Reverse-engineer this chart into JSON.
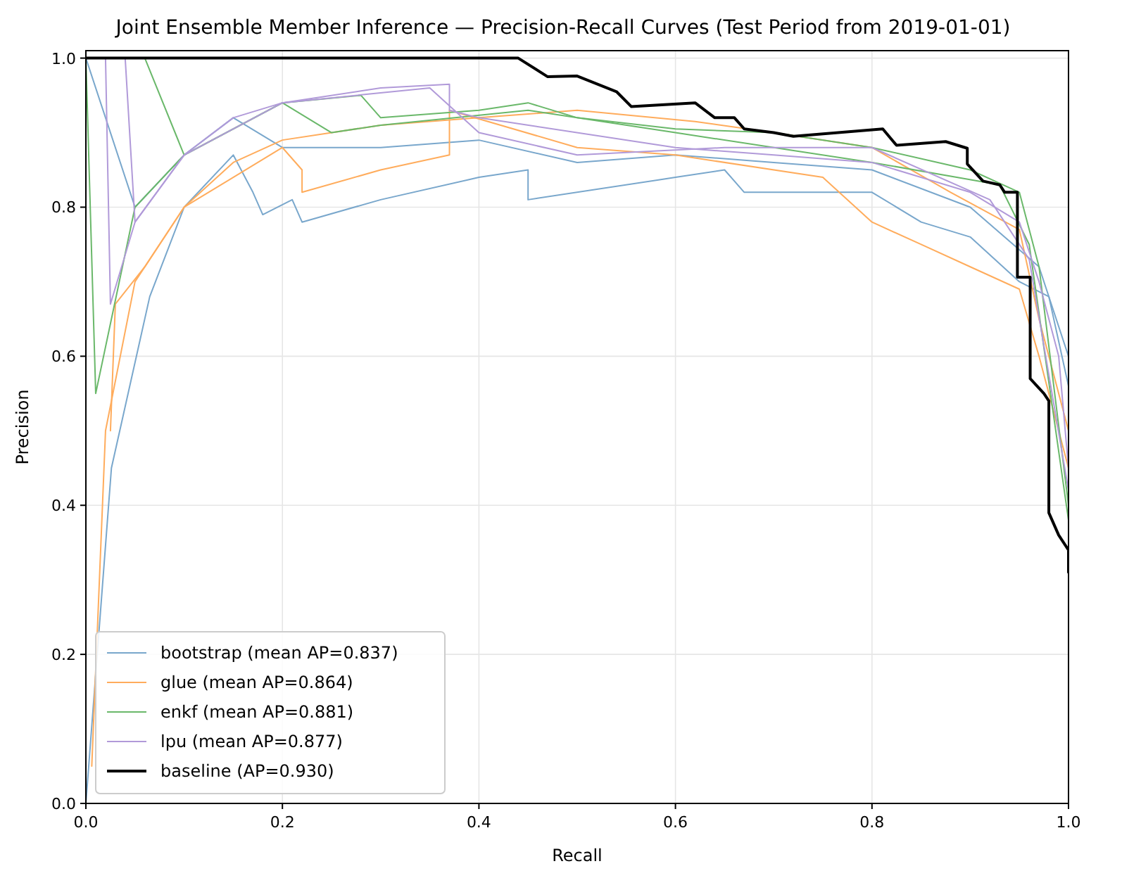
{
  "chart_data": {
    "type": "line",
    "title": "Joint Ensemble Member Inference — Precision-Recall Curves (Test Period from 2019-01-01)",
    "xlabel": "Recall",
    "ylabel": "Precision",
    "xlim": [
      0,
      1
    ],
    "ylim": [
      0,
      1.01
    ],
    "xticks": [
      {
        "value": 0,
        "label": "0.0"
      },
      {
        "value": 0.2,
        "label": "0.2"
      },
      {
        "value": 0.4,
        "label": "0.4"
      },
      {
        "value": 0.6,
        "label": "0.6"
      },
      {
        "value": 0.8,
        "label": "0.8"
      },
      {
        "value": 1,
        "label": "1.0"
      }
    ],
    "yticks": [
      {
        "value": 0,
        "label": "0.0"
      },
      {
        "value": 0.2,
        "label": "0.2"
      },
      {
        "value": 0.4,
        "label": "0.4"
      },
      {
        "value": 0.6,
        "label": "0.6"
      },
      {
        "value": 0.8,
        "label": "0.8"
      },
      {
        "value": 1,
        "label": "1.0"
      }
    ],
    "grid": true,
    "legend": "bottom left",
    "line_style": "solid",
    "marker": "none",
    "series": [
      {
        "name": "bootstrap (mean AP=0.837)",
        "color": "#79a7cc",
        "x": [
          0,
          0.026,
          0.065,
          0.1,
          0.15,
          0.17,
          0.18,
          0.21,
          0.22,
          0.3,
          0.4,
          0.45,
          0.45,
          0.6,
          0.65,
          0.67,
          0.8,
          0.85,
          0.9,
          0.95,
          0.98,
          1
        ],
        "values": [
          0,
          0.45,
          0.68,
          0.8,
          0.87,
          0.82,
          0.79,
          0.81,
          0.78,
          0.81,
          0.84,
          0.85,
          0.81,
          0.84,
          0.85,
          0.82,
          0.82,
          0.78,
          0.76,
          0.7,
          0.68,
          0.56
        ]
      },
      {
        "color": "#79a7cc",
        "x": [
          0,
          0.05,
          0.1,
          0.15,
          0.2,
          0.3,
          0.4,
          0.5,
          0.6,
          0.7,
          0.8,
          0.9,
          0.97,
          1
        ],
        "values": [
          1,
          0.8,
          0.87,
          0.92,
          0.88,
          0.88,
          0.89,
          0.86,
          0.87,
          0.86,
          0.85,
          0.8,
          0.72,
          0.6
        ]
      },
      {
        "name": "glue (mean AP=0.864)",
        "color": "#ffac5c",
        "x": [
          0.025,
          0.03,
          0.06,
          0.1,
          0.15,
          0.2,
          0.3,
          0.4,
          0.5,
          0.62,
          0.7,
          0.8,
          0.88,
          0.95,
          0.97,
          1
        ],
        "values": [
          0.5,
          0.67,
          0.72,
          0.8,
          0.86,
          0.89,
          0.91,
          0.92,
          0.93,
          0.915,
          0.9,
          0.88,
          0.82,
          0.77,
          0.65,
          0.5
        ]
      },
      {
        "color": "#ffac5c",
        "x": [
          0.006,
          0.02,
          0.05,
          0.1,
          0.2,
          0.22,
          0.22,
          0.3,
          0.37,
          0.37,
          0.5,
          0.6,
          0.75,
          0.8,
          0.85,
          0.9,
          0.95,
          0.97,
          1
        ],
        "values": [
          0.05,
          0.5,
          0.7,
          0.8,
          0.88,
          0.85,
          0.82,
          0.85,
          0.87,
          0.93,
          0.88,
          0.87,
          0.84,
          0.78,
          0.75,
          0.72,
          0.69,
          0.6,
          0.45
        ]
      },
      {
        "name": "enkf (mean AP=0.881)",
        "color": "#6ab86a",
        "x": [
          0,
          0.01,
          0.05,
          0.1,
          0.2,
          0.28,
          0.3,
          0.4,
          0.45,
          0.5,
          0.6,
          0.7,
          0.8,
          0.9,
          0.95,
          0.97,
          1
        ],
        "values": [
          1,
          0.55,
          0.8,
          0.87,
          0.94,
          0.95,
          0.92,
          0.93,
          0.94,
          0.92,
          0.905,
          0.9,
          0.88,
          0.85,
          0.82,
          0.72,
          0.4
        ]
      },
      {
        "color": "#6ab86a",
        "x": [
          0,
          0.06,
          0.1,
          0.2,
          0.25,
          0.3,
          0.45,
          0.6,
          0.8,
          0.93,
          0.96,
          1
        ],
        "values": [
          1,
          1,
          0.87,
          0.94,
          0.9,
          0.91,
          0.93,
          0.9,
          0.86,
          0.83,
          0.75,
          0.38
        ]
      },
      {
        "name": "lpu (mean AP=0.877)",
        "color": "#b19ad9",
        "x": [
          0,
          0.02,
          0.025,
          0.05,
          0.1,
          0.15,
          0.2,
          0.3,
          0.37,
          0.37,
          0.4,
          0.6,
          0.7,
          0.8,
          0.9,
          0.95,
          0.97,
          0.99,
          1
        ],
        "values": [
          1,
          1,
          0.67,
          0.78,
          0.87,
          0.92,
          0.94,
          0.96,
          0.965,
          0.93,
          0.92,
          0.88,
          0.87,
          0.86,
          0.82,
          0.78,
          0.7,
          0.6,
          0.45
        ]
      },
      {
        "color": "#b19ad9",
        "x": [
          0,
          0.04,
          0.05,
          0.1,
          0.2,
          0.35,
          0.4,
          0.5,
          0.65,
          0.8,
          0.92,
          0.96,
          1
        ],
        "values": [
          1,
          1,
          0.78,
          0.87,
          0.94,
          0.96,
          0.9,
          0.87,
          0.88,
          0.88,
          0.81,
          0.73,
          0.42
        ]
      },
      {
        "name": "baseline (AP=0.930)",
        "color": "#000000",
        "x": [
          0,
          0.44,
          0.47,
          0.5,
          0.54,
          0.555,
          0.62,
          0.64,
          0.66,
          0.67,
          0.7,
          0.72,
          0.811,
          0.825,
          0.875,
          0.897,
          0.897,
          0.913,
          0.93,
          0.935,
          0.948,
          0.948,
          0.961,
          0.961,
          0.975,
          0.98,
          0.98,
          0.99,
          1,
          1
        ],
        "values": [
          1,
          1,
          0.975,
          0.976,
          0.955,
          0.935,
          0.94,
          0.92,
          0.92,
          0.905,
          0.9,
          0.895,
          0.905,
          0.883,
          0.888,
          0.879,
          0.858,
          0.835,
          0.83,
          0.82,
          0.82,
          0.706,
          0.706,
          0.57,
          0.55,
          0.54,
          0.39,
          0.36,
          0.34,
          0.31
        ]
      }
    ]
  }
}
